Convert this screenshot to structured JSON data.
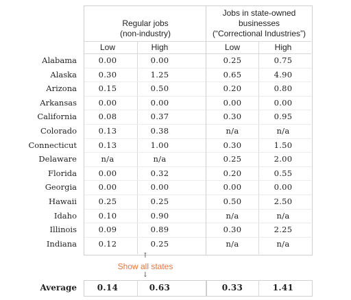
{
  "groups": {
    "regular": {
      "title_line1": "Regular jobs",
      "title_line2": "(non-industry)",
      "low": "Low",
      "high": "High"
    },
    "state_owned": {
      "title_line1": "Jobs in state-owned",
      "title_line2": "businesses",
      "title_line3": "(“Correctional Industries”)",
      "low": "Low",
      "high": "High"
    }
  },
  "rows": [
    {
      "state": "Alabama",
      "reg_low": "0.00",
      "reg_high": "0.00",
      "ci_low": "0.25",
      "ci_high": "0.75"
    },
    {
      "state": "Alaska",
      "reg_low": "0.30",
      "reg_high": "1.25",
      "ci_low": "0.65",
      "ci_high": "4.90"
    },
    {
      "state": "Arizona",
      "reg_low": "0.15",
      "reg_high": "0.50",
      "ci_low": "0.20",
      "ci_high": "0.80"
    },
    {
      "state": "Arkansas",
      "reg_low": "0.00",
      "reg_high": "0.00",
      "ci_low": "0.00",
      "ci_high": "0.00"
    },
    {
      "state": "California",
      "reg_low": "0.08",
      "reg_high": "0.37",
      "ci_low": "0.30",
      "ci_high": "0.95"
    },
    {
      "state": "Colorado",
      "reg_low": "0.13",
      "reg_high": "0.38",
      "ci_low": "n/a",
      "ci_high": "n/a"
    },
    {
      "state": "Connecticut",
      "reg_low": "0.13",
      "reg_high": "1.00",
      "ci_low": "0.30",
      "ci_high": "1.50"
    },
    {
      "state": "Delaware",
      "reg_low": "n/a",
      "reg_high": "n/a",
      "ci_low": "0.25",
      "ci_high": "2.00"
    },
    {
      "state": "Florida",
      "reg_low": "0.00",
      "reg_high": "0.32",
      "ci_low": "0.20",
      "ci_high": "0.55"
    },
    {
      "state": "Georgia",
      "reg_low": "0.00",
      "reg_high": "0.00",
      "ci_low": "0.00",
      "ci_high": "0.00"
    },
    {
      "state": "Hawaii",
      "reg_low": "0.25",
      "reg_high": "0.25",
      "ci_low": "0.50",
      "ci_high": "2.50"
    },
    {
      "state": "Idaho",
      "reg_low": "0.10",
      "reg_high": "0.90",
      "ci_low": "n/a",
      "ci_high": "n/a"
    },
    {
      "state": "Illinois",
      "reg_low": "0.09",
      "reg_high": "0.89",
      "ci_low": "0.30",
      "ci_high": "2.25"
    },
    {
      "state": "Indiana",
      "reg_low": "0.12",
      "reg_high": "0.25",
      "ci_low": "n/a",
      "ci_high": "n/a"
    }
  ],
  "show_all": {
    "label": "Show all states",
    "arrow_up": "↑",
    "arrow_down": "↓"
  },
  "average": {
    "label": "Average",
    "reg_low": "0.14",
    "reg_high": "0.63",
    "ci_low": "0.33",
    "ci_high": "1.41"
  },
  "colors": {
    "link": "#e8743b",
    "border": "#cfcfcf"
  }
}
